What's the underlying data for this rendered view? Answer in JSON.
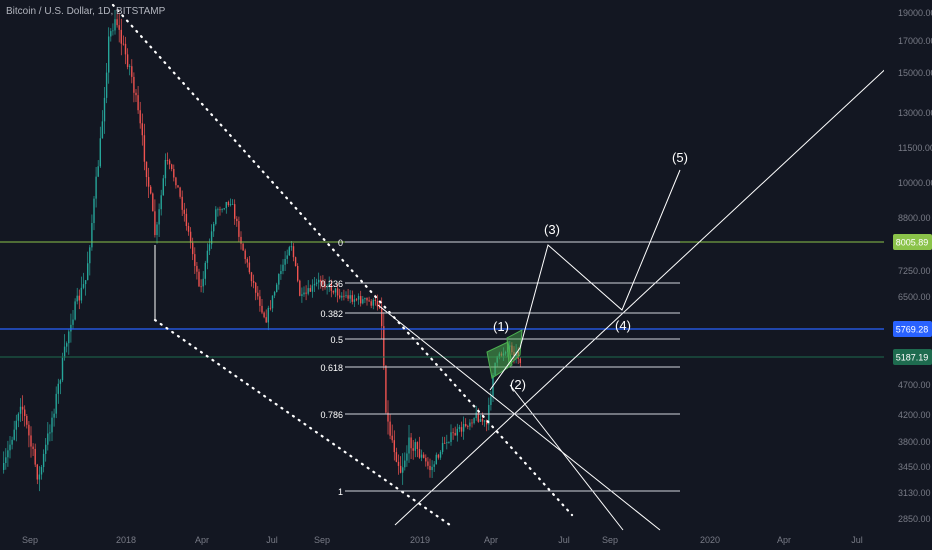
{
  "chart_data": {
    "type": "line",
    "title": "Bitcoin / U.S. Dollar, 1D, BITSTAMP",
    "price_axis": {
      "ticks": [
        "19000.00",
        "17000.00",
        "15000.00",
        "13000.00",
        "11500.00",
        "10000.00",
        "8800.00",
        "7250.00",
        "6500.00",
        "4700.00",
        "4200.00",
        "3800.00",
        "3450.00",
        "3130.00",
        "2850.00"
      ],
      "scale": "log"
    },
    "time_axis": {
      "ticks": [
        "Sep",
        "2018",
        "Apr",
        "Jul",
        "Sep",
        "2019",
        "Apr",
        "Jul",
        "Sep",
        "2020",
        "Apr",
        "Jul"
      ]
    },
    "price_labels": [
      {
        "value": "8005.89",
        "color": "#8bc34a"
      },
      {
        "value": "5769.28",
        "color": "#2962ff"
      },
      {
        "value": "5187.19",
        "color": "#1e6b4f"
      }
    ],
    "fib_levels": [
      "0",
      "0.236",
      "0.382",
      "0.5",
      "0.618",
      "0.786",
      "1"
    ],
    "wave_labels": [
      "(1)",
      "(2)",
      "(3)",
      "(4)",
      "(5)"
    ],
    "colors": {
      "background": "#131722",
      "up": "#26a69a",
      "down": "#ef5350",
      "green_line": "#8bc34a",
      "blue_line": "#2962ff",
      "dark_green_line": "#1e6b4f",
      "fib": "#d1d4dc"
    }
  }
}
